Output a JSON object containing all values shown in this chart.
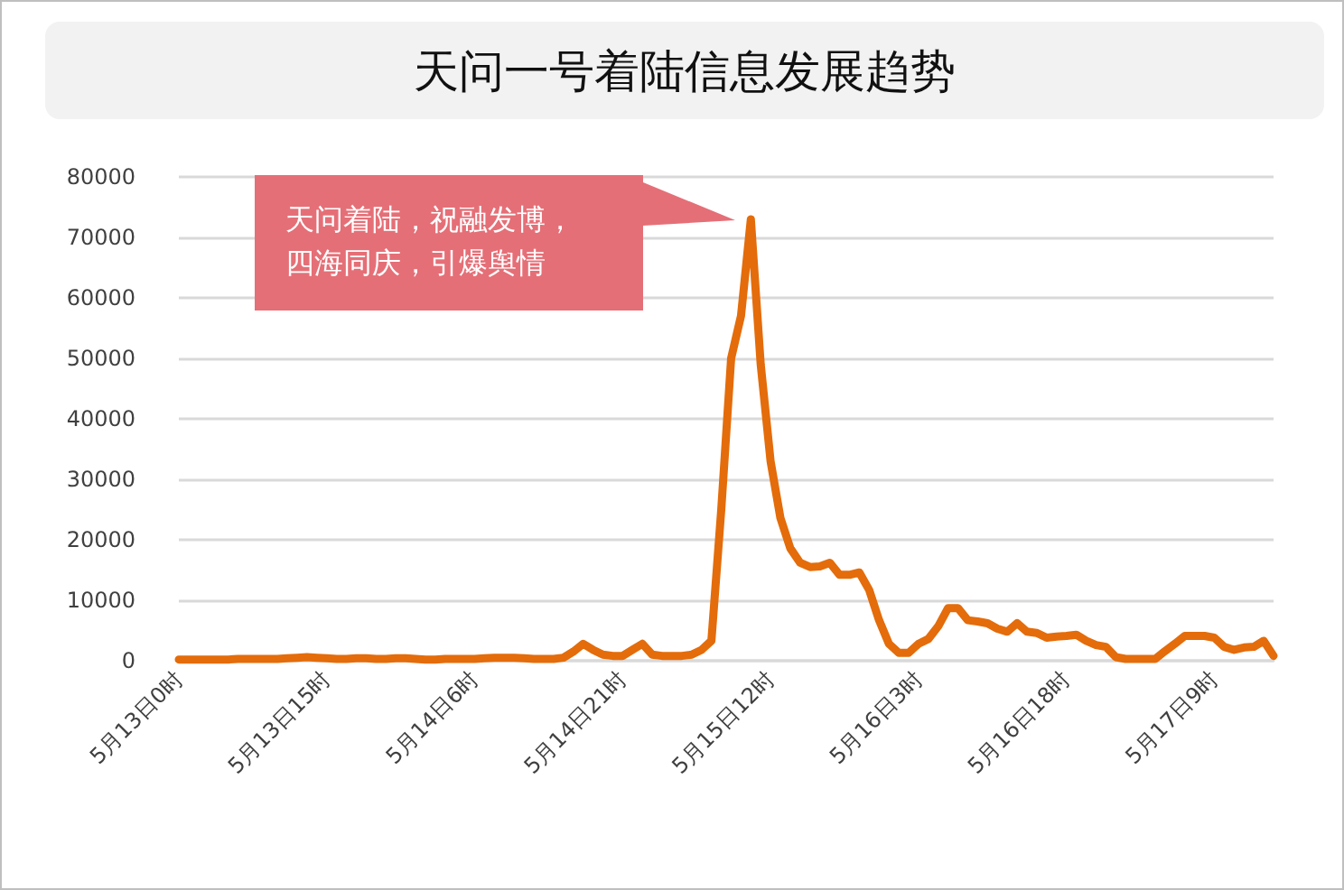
{
  "chart_data": {
    "type": "line",
    "title": "天问一号着陆信息发展趋势",
    "annotations": [
      "天问着陆，祝融发博，四海同庆，引爆舆情"
    ],
    "categories": [
      "5月13日0时",
      null,
      null,
      null,
      null,
      null,
      null,
      null,
      null,
      null,
      null,
      null,
      null,
      null,
      null,
      "5月13日15时",
      null,
      null,
      null,
      null,
      null,
      null,
      null,
      null,
      null,
      null,
      null,
      null,
      null,
      null,
      "5月14日6时",
      null,
      null,
      null,
      null,
      null,
      null,
      null,
      null,
      null,
      null,
      null,
      null,
      null,
      null,
      "5月14日21时",
      null,
      null,
      null,
      null,
      null,
      null,
      null,
      null,
      null,
      null,
      null,
      null,
      null,
      null,
      "5月15日12时",
      null,
      null,
      null,
      null,
      null,
      null,
      null,
      null,
      null,
      null,
      null,
      null,
      null,
      null,
      "5月16日3时",
      null,
      null,
      null,
      null,
      null,
      null,
      null,
      null,
      null,
      null,
      null,
      null,
      null,
      null,
      "5月16日18时",
      null,
      null,
      null,
      null,
      null,
      null,
      null,
      null,
      null,
      null,
      null,
      null,
      null,
      null,
      "5月17日9时",
      null,
      null,
      null,
      null,
      null,
      null
    ],
    "series": [
      {
        "color": "#e46c0a",
        "values": [
          200,
          200,
          200,
          200,
          200,
          200,
          300,
          300,
          300,
          300,
          300,
          400,
          500,
          600,
          500,
          400,
          300,
          300,
          400,
          400,
          300,
          300,
          400,
          400,
          300,
          200,
          200,
          300,
          300,
          300,
          300,
          400,
          500,
          500,
          500,
          400,
          300,
          300,
          300,
          500,
          1500,
          2800,
          1800,
          1000,
          800,
          800,
          1800,
          2800,
          1000,
          800,
          800,
          800,
          1000,
          1800,
          3300,
          25000,
          50000,
          57000,
          73000,
          49000,
          33000,
          23600,
          18600,
          16200,
          15500,
          15600,
          16200,
          14200,
          14200,
          14600,
          11700,
          6700,
          2800,
          1300,
          1300,
          2800,
          3600,
          5700,
          8700,
          8700,
          6700,
          6500,
          6200,
          5300,
          4800,
          6200,
          4800,
          4600,
          3800,
          4000,
          4100,
          4300,
          3300,
          2600,
          2300,
          600,
          300,
          300,
          300,
          300,
          1600,
          2800,
          4100,
          4100,
          4100,
          3800,
          2300,
          1800,
          2200,
          2300,
          3300,
          800
        ]
      }
    ],
    "ylim": [
      0,
      80000
    ],
    "yticks": [
      0,
      10000,
      20000,
      30000,
      40000,
      50000,
      60000,
      70000,
      80000
    ],
    "grid": "y",
    "marker": "none",
    "line_style": "solid"
  }
}
